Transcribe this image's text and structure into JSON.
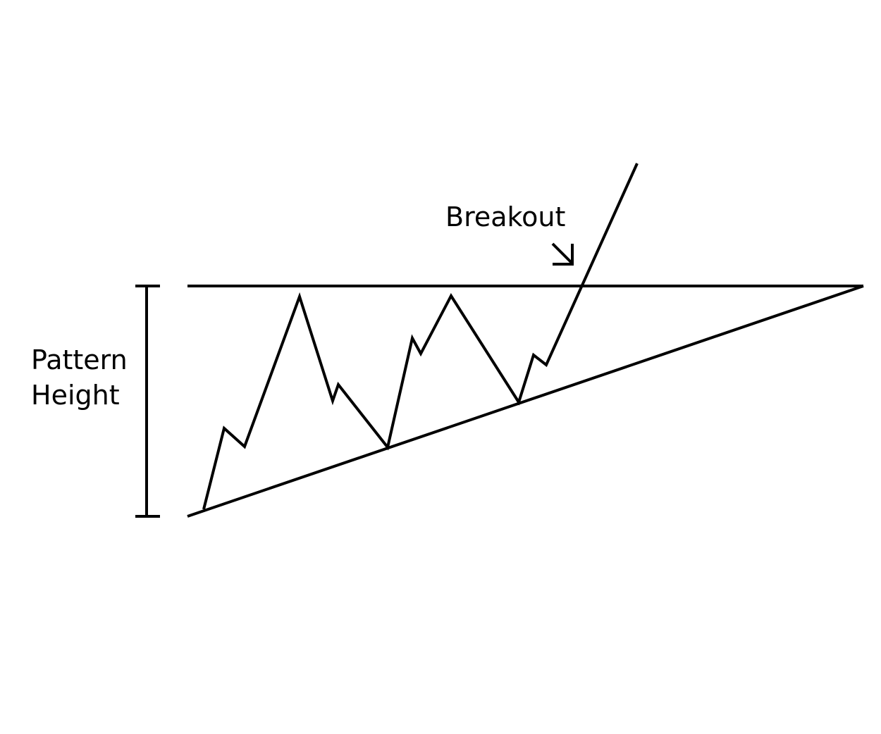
{
  "labels": {
    "pattern_height_line1": "Pattern",
    "pattern_height_line2": "Height",
    "breakout": "Breakout"
  },
  "colors": {
    "stroke": "#000000",
    "background": "#ffffff"
  },
  "icons": {
    "breakout_pointer": "arrow-down-right-icon"
  }
}
